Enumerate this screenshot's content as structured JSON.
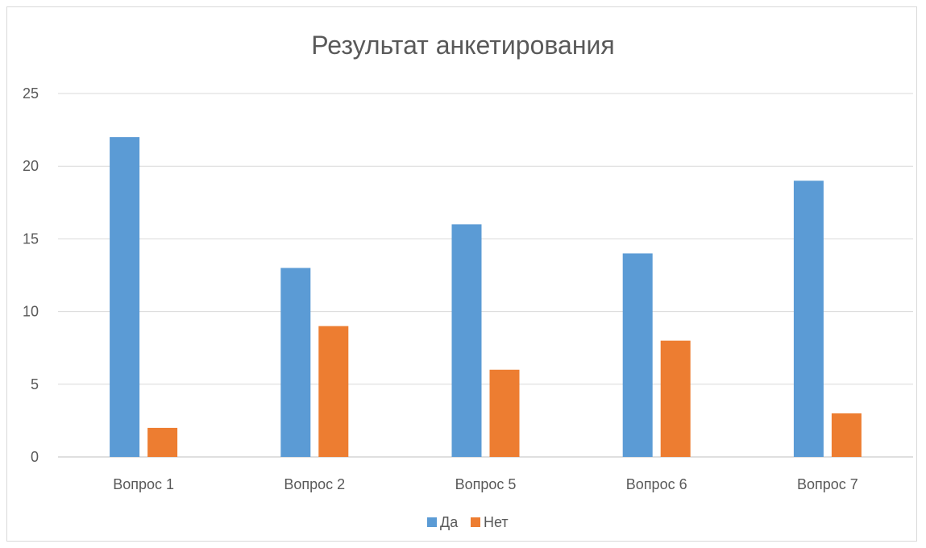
{
  "chart_data": {
    "type": "bar",
    "title": "Результат анкетирования",
    "categories": [
      "Вопрос 1",
      "Вопрос 2",
      "Вопрос 5",
      "Вопрос 6",
      "Вопрос 7"
    ],
    "series": [
      {
        "name": "Да",
        "values": [
          22,
          13,
          16,
          14,
          19
        ],
        "color": "#5b9bd5"
      },
      {
        "name": "Нет",
        "values": [
          2,
          9,
          6,
          8,
          3
        ],
        "color": "#ed7d31"
      }
    ],
    "ylim": [
      0,
      25
    ],
    "yticks": [
      "0",
      "5",
      "10",
      "15",
      "20",
      "25"
    ],
    "grid": true,
    "legend_position": "bottom"
  }
}
